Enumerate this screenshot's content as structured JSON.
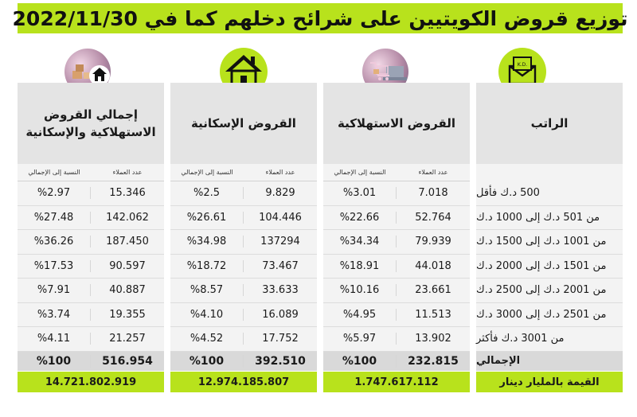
{
  "title": "توزيع قروض الكويتيين على شرائح دخلهم كما في 2022/11/30",
  "icons": {
    "salary": "envelope-kd-icon",
    "consumer": "shopping-cart-laptop-icon",
    "housing": "house-icon",
    "total": "cart-house-icon",
    "envelope_text": "K.D."
  },
  "colors": {
    "accent": "#b8e21c",
    "header_bg": "#e4e4e4",
    "row_bg": "#f3f3f3",
    "total_bg": "#d9d9d9"
  },
  "salary": {
    "heading": "الراتب",
    "brackets": [
      "500 د.ك فأقل",
      "من 501 د.ك إلى 1000 د.ك",
      "من 1001 د.ك إلى 1500 د.ك",
      "من 1501 د.ك إلى 2000 د.ك",
      "من 2001 د.ك إلى 2500 د.ك",
      "من 2501 د.ك إلى 3000 د.ك",
      "من 3001 د.ك فأكثر"
    ],
    "total_label": "الإجمالي",
    "footer": "القيمة بالمليار دينار"
  },
  "consumer": {
    "heading": "القروض الاستهلاكية",
    "col_clients": "عدد العملاء",
    "col_ratio": "النسبة إلى الإجمالي",
    "clients": [
      "7.018",
      "52.764",
      "79.939",
      "44.018",
      "23.661",
      "11.513",
      "13.902"
    ],
    "ratios": [
      "%3.01",
      "%22.66",
      "%34.34",
      "%18.91",
      "%10.16",
      "%4.95",
      "%5.97"
    ],
    "total_clients": "232.815",
    "total_ratio": "%100",
    "value": "1.747.617.112"
  },
  "housing": {
    "heading": "القروض الإسكانية",
    "col_clients": "عدد العملاء",
    "col_ratio": "النسبة إلى الإجمالي",
    "clients": [
      "9.829",
      "104.446",
      "137294",
      "73.467",
      "33.633",
      "16.089",
      "17.752"
    ],
    "ratios": [
      "%2.5",
      "%26.61",
      "%34.98",
      "%18.72",
      "%8.57",
      "%4.10",
      "%4.52"
    ],
    "total_clients": "392.510",
    "total_ratio": "%100",
    "value": "12.974.185.807"
  },
  "total": {
    "heading": "إجمالي القروض الاستهلاكية والإسكانية",
    "col_clients": "عدد العملاء",
    "col_ratio": "النسبة إلى الإجمالي",
    "clients": [
      "15.346",
      "142.062",
      "187.450",
      "90.597",
      "40.887",
      "19.355",
      "21.257"
    ],
    "ratios": [
      "%2.97",
      "%27.48",
      "%36.26",
      "%17.53",
      "%7.91",
      "%3.74",
      "%4.11"
    ],
    "total_clients": "516.954",
    "total_ratio": "%100",
    "value": "14.721.802.919"
  }
}
